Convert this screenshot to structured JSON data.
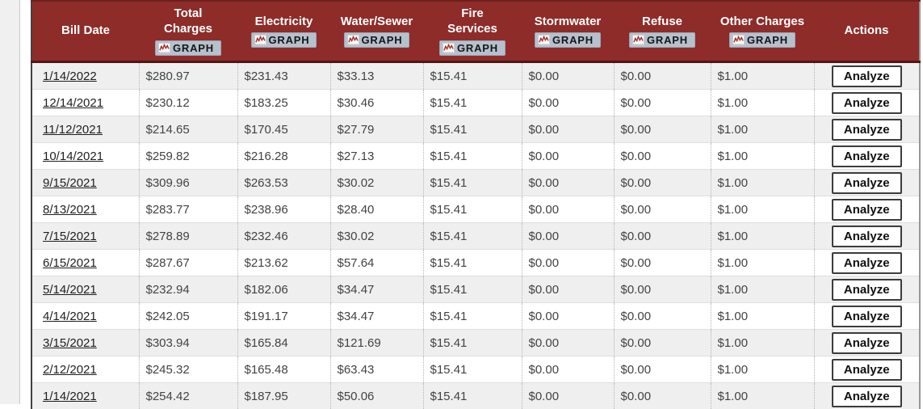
{
  "table": {
    "graph_button_label": "GRAPH",
    "analyze_button_label": "Analyze",
    "columns": [
      {
        "key": "bill-date",
        "lines": [
          "Bill Date"
        ],
        "graph": false
      },
      {
        "key": "total-charges",
        "lines": [
          "Total",
          "Charges"
        ],
        "graph": true
      },
      {
        "key": "electricity",
        "lines": [
          "Electricity"
        ],
        "graph": true
      },
      {
        "key": "water-sewer",
        "lines": [
          "Water/Sewer"
        ],
        "graph": true
      },
      {
        "key": "fire-services",
        "lines": [
          "Fire",
          "Services"
        ],
        "graph": true
      },
      {
        "key": "stormwater",
        "lines": [
          "Stormwater"
        ],
        "graph": true
      },
      {
        "key": "refuse",
        "lines": [
          "Refuse"
        ],
        "graph": true
      },
      {
        "key": "other-charges",
        "lines": [
          "Other Charges"
        ],
        "graph": true
      },
      {
        "key": "actions",
        "lines": [
          "Actions"
        ],
        "graph": false
      }
    ],
    "value_keys": [
      "total_charges",
      "electricity",
      "water_sewer",
      "fire_services",
      "stormwater",
      "refuse",
      "other_charges"
    ],
    "rows": [
      {
        "bill_date": "1/14/2022",
        "total_charges": "$280.97",
        "electricity": "$231.43",
        "water_sewer": "$33.13",
        "fire_services": "$15.41",
        "stormwater": "$0.00",
        "refuse": "$0.00",
        "other_charges": "$1.00"
      },
      {
        "bill_date": "12/14/2021",
        "total_charges": "$230.12",
        "electricity": "$183.25",
        "water_sewer": "$30.46",
        "fire_services": "$15.41",
        "stormwater": "$0.00",
        "refuse": "$0.00",
        "other_charges": "$1.00"
      },
      {
        "bill_date": "11/12/2021",
        "total_charges": "$214.65",
        "electricity": "$170.45",
        "water_sewer": "$27.79",
        "fire_services": "$15.41",
        "stormwater": "$0.00",
        "refuse": "$0.00",
        "other_charges": "$1.00"
      },
      {
        "bill_date": "10/14/2021",
        "total_charges": "$259.82",
        "electricity": "$216.28",
        "water_sewer": "$27.13",
        "fire_services": "$15.41",
        "stormwater": "$0.00",
        "refuse": "$0.00",
        "other_charges": "$1.00"
      },
      {
        "bill_date": "9/15/2021",
        "total_charges": "$309.96",
        "electricity": "$263.53",
        "water_sewer": "$30.02",
        "fire_services": "$15.41",
        "stormwater": "$0.00",
        "refuse": "$0.00",
        "other_charges": "$1.00"
      },
      {
        "bill_date": "8/13/2021",
        "total_charges": "$283.77",
        "electricity": "$238.96",
        "water_sewer": "$28.40",
        "fire_services": "$15.41",
        "stormwater": "$0.00",
        "refuse": "$0.00",
        "other_charges": "$1.00"
      },
      {
        "bill_date": "7/15/2021",
        "total_charges": "$278.89",
        "electricity": "$232.46",
        "water_sewer": "$30.02",
        "fire_services": "$15.41",
        "stormwater": "$0.00",
        "refuse": "$0.00",
        "other_charges": "$1.00"
      },
      {
        "bill_date": "6/15/2021",
        "total_charges": "$287.67",
        "electricity": "$213.62",
        "water_sewer": "$57.64",
        "fire_services": "$15.41",
        "stormwater": "$0.00",
        "refuse": "$0.00",
        "other_charges": "$1.00"
      },
      {
        "bill_date": "5/14/2021",
        "total_charges": "$232.94",
        "electricity": "$182.06",
        "water_sewer": "$34.47",
        "fire_services": "$15.41",
        "stormwater": "$0.00",
        "refuse": "$0.00",
        "other_charges": "$1.00"
      },
      {
        "bill_date": "4/14/2021",
        "total_charges": "$242.05",
        "electricity": "$191.17",
        "water_sewer": "$34.47",
        "fire_services": "$15.41",
        "stormwater": "$0.00",
        "refuse": "$0.00",
        "other_charges": "$1.00"
      },
      {
        "bill_date": "3/15/2021",
        "total_charges": "$303.94",
        "electricity": "$165.84",
        "water_sewer": "$121.69",
        "fire_services": "$15.41",
        "stormwater": "$0.00",
        "refuse": "$0.00",
        "other_charges": "$1.00"
      },
      {
        "bill_date": "2/12/2021",
        "total_charges": "$245.32",
        "electricity": "$165.48",
        "water_sewer": "$63.43",
        "fire_services": "$15.41",
        "stormwater": "$0.00",
        "refuse": "$0.00",
        "other_charges": "$1.00"
      },
      {
        "bill_date": "1/14/2021",
        "total_charges": "$254.42",
        "electricity": "$187.95",
        "water_sewer": "$50.06",
        "fire_services": "$15.41",
        "stormwater": "$0.00",
        "refuse": "$0.00",
        "other_charges": "$1.00"
      }
    ]
  },
  "colors": {
    "header_bg": "#8e2c2a",
    "header_text": "#ffffff",
    "header_top_border": "#6f201d",
    "header_bottom_border": "#511614",
    "row_stripe": "#efefef",
    "row_white": "#ffffff",
    "graph_button_bg": "#b5c1cd",
    "chart_icon_line": "#b03a30",
    "analyze_border": "#3c3c3c",
    "link_color": "#1f1f1f",
    "money_color": "#434343",
    "gutter_line": "#c9c9c9"
  }
}
